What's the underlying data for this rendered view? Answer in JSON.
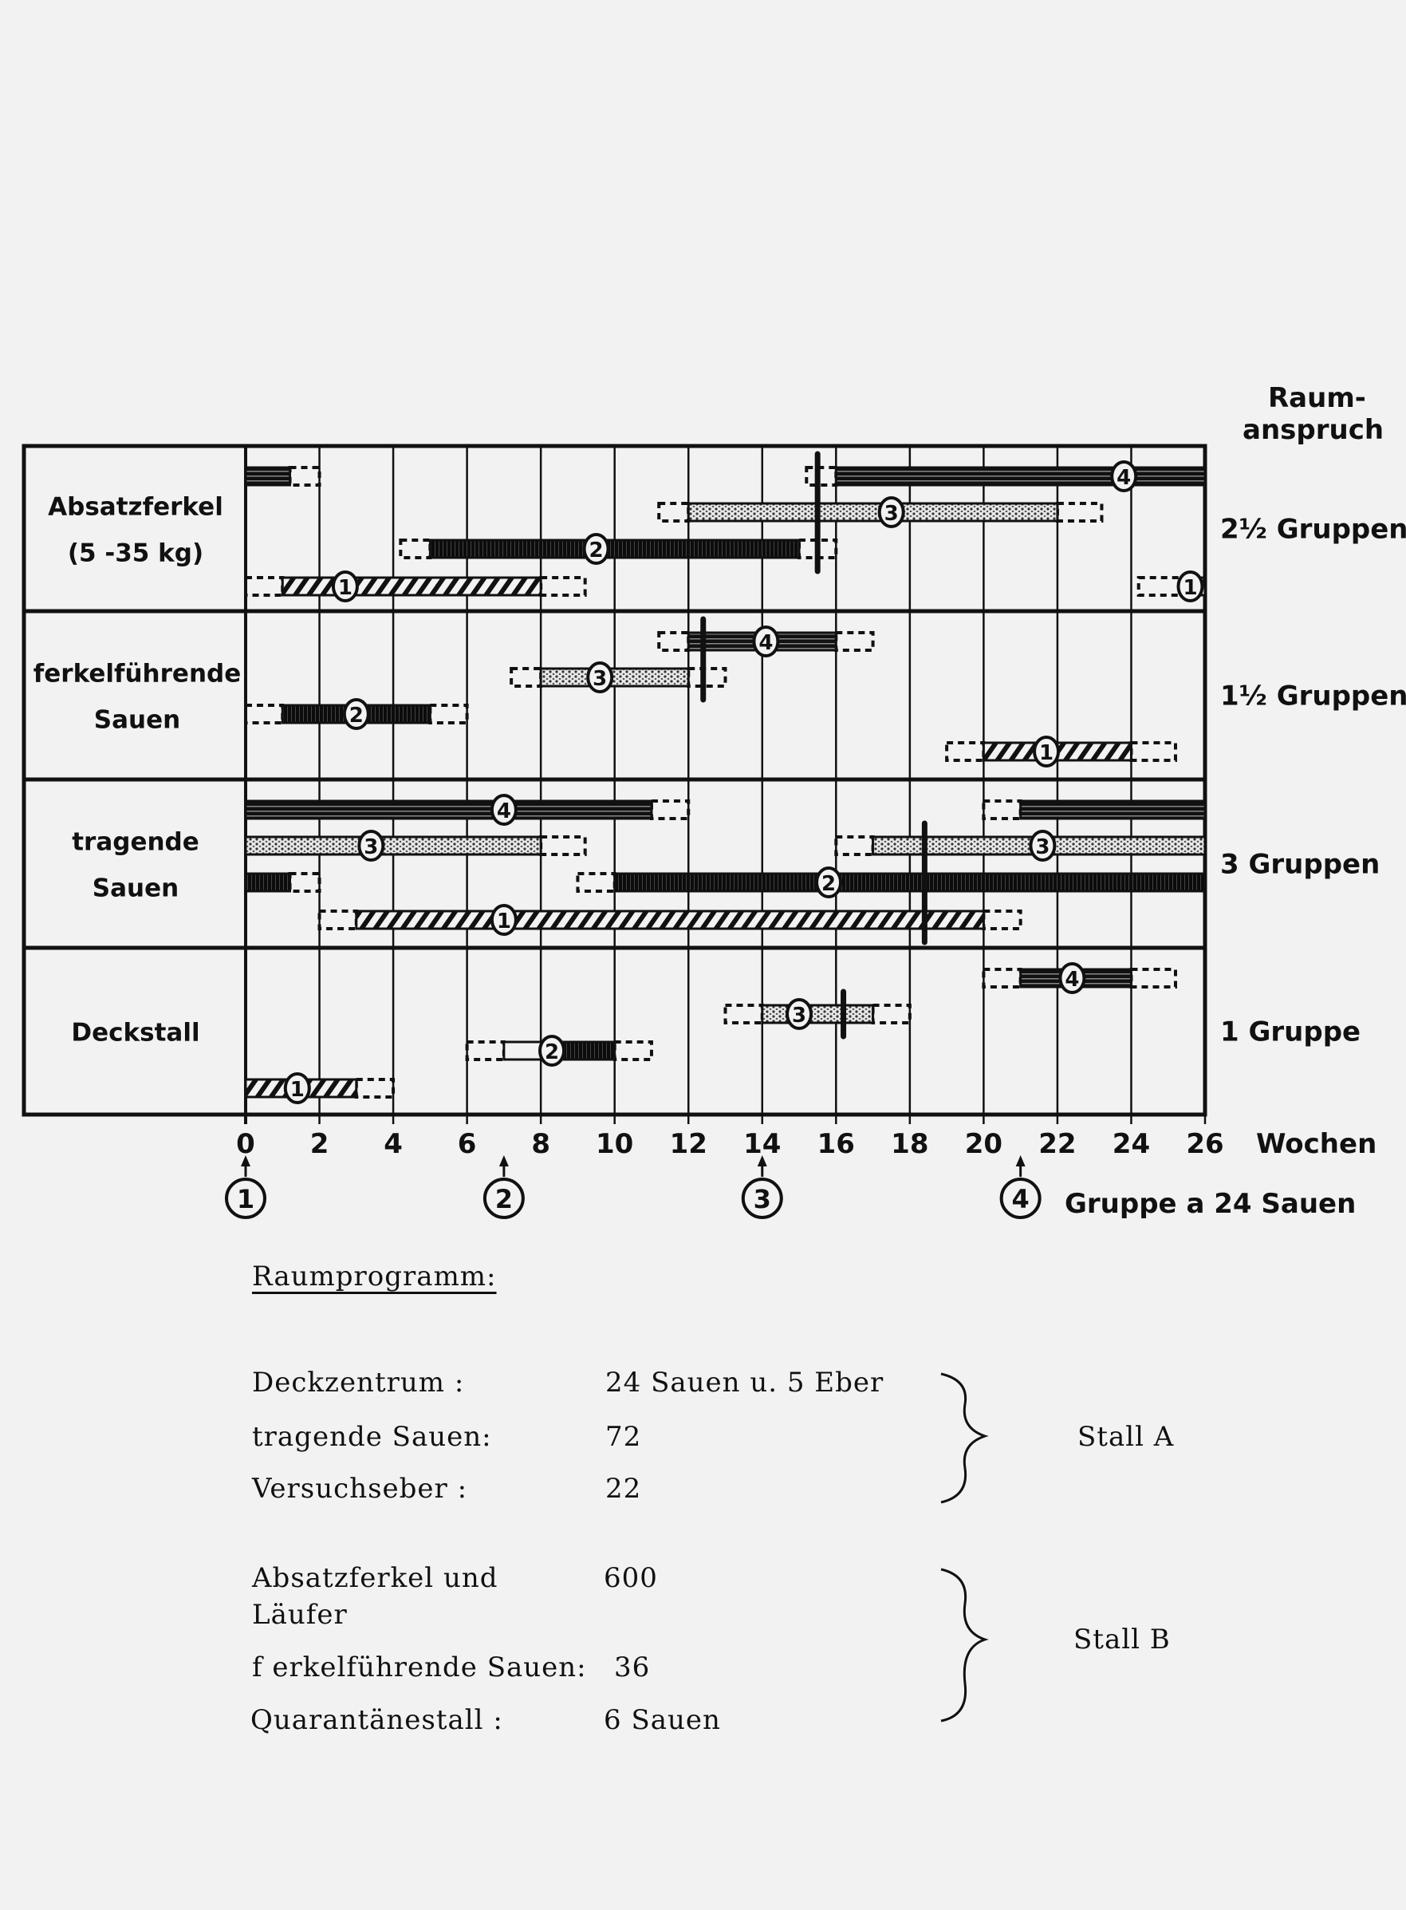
{
  "chart_data": {
    "type": "gantt",
    "x_unit_label": "Wochen",
    "xlim": [
      0,
      26
    ],
    "x_ticks": [
      0,
      2,
      4,
      6,
      8,
      10,
      12,
      14,
      16,
      18,
      20,
      22,
      24,
      26
    ],
    "grid": true,
    "corner_label": [
      "Raum-",
      "anspruch"
    ],
    "group_starts": [
      {
        "group": "1",
        "week": 0
      },
      {
        "group": "2",
        "week": 7
      },
      {
        "group": "3",
        "week": 14
      },
      {
        "group": "4",
        "week": 21
      }
    ],
    "group_note": "Gruppe a 24 Sauen",
    "patterns": {
      "1": "hatched",
      "2": "solid-dark",
      "3": "dotted",
      "4": "striped"
    },
    "rows": [
      {
        "label": [
          "Absatzferkel",
          "(5 -35 kg)"
        ],
        "space": "2½ Gruppen",
        "divider_week": 15.5,
        "divider_groups": [
          "4",
          "2"
        ],
        "bars": [
          {
            "group": "4",
            "solid": [
              [
                0,
                1.2
              ],
              [
                16,
                26
              ]
            ],
            "dashed": [
              [
                1.2,
                2
              ],
              [
                15.2,
                16
              ]
            ],
            "labels_at": [
              23.8
            ]
          },
          {
            "group": "3",
            "solid": [
              [
                12,
                22
              ]
            ],
            "dashed": [
              [
                11.2,
                12
              ],
              [
                22,
                23.2
              ]
            ],
            "labels_at": [
              17.5
            ]
          },
          {
            "group": "2",
            "solid": [
              [
                5,
                15
              ]
            ],
            "dashed": [
              [
                4.2,
                5
              ],
              [
                15,
                16
              ]
            ],
            "labels_at": [
              9.5
            ]
          },
          {
            "group": "1",
            "solid": [
              [
                1,
                8
              ],
              [
                25.4,
                26
              ]
            ],
            "dashed": [
              [
                0,
                1
              ],
              [
                8,
                9.2
              ],
              [
                24.2,
                25.4
              ]
            ],
            "labels_at": [
              2.7,
              25.6
            ]
          }
        ]
      },
      {
        "label": [
          "ferkelführende",
          "Sauen"
        ],
        "space": "1½ Gruppen",
        "divider_week": 12.4,
        "divider_groups": [
          "4",
          "3"
        ],
        "bars": [
          {
            "group": "4",
            "solid": [
              [
                12,
                16
              ]
            ],
            "dashed": [
              [
                11.2,
                12
              ],
              [
                16,
                17
              ]
            ],
            "labels_at": [
              14.1
            ]
          },
          {
            "group": "3",
            "solid": [
              [
                8,
                12
              ]
            ],
            "dashed": [
              [
                7.2,
                8
              ],
              [
                12,
                13
              ]
            ],
            "labels_at": [
              9.6
            ]
          },
          {
            "group": "2",
            "solid": [
              [
                1,
                5
              ]
            ],
            "dashed": [
              [
                0,
                1
              ],
              [
                5,
                6
              ]
            ],
            "labels_at": [
              3
            ]
          },
          {
            "group": "1",
            "solid": [
              [
                20,
                24
              ]
            ],
            "dashed": [
              [
                19,
                20
              ],
              [
                24,
                25.2
              ]
            ],
            "labels_at": [
              21.7
            ]
          }
        ]
      },
      {
        "label": [
          "tragende",
          "Sauen"
        ],
        "space": "3 Gruppen",
        "divider_week": 18.4,
        "divider_groups": [
          "3",
          "1"
        ],
        "bars": [
          {
            "group": "4",
            "solid": [
              [
                0,
                11
              ],
              [
                21,
                26
              ]
            ],
            "dashed": [
              [
                11,
                12
              ],
              [
                20,
                21
              ]
            ],
            "labels_at": [
              7
            ]
          },
          {
            "group": "3",
            "solid": [
              [
                0,
                8
              ],
              [
                17,
                26
              ]
            ],
            "dashed": [
              [
                8,
                9.2
              ],
              [
                16,
                17
              ]
            ],
            "labels_at": [
              3.4,
              21.6
            ]
          },
          {
            "group": "2",
            "solid": [
              [
                0,
                1.2
              ],
              [
                10,
                26
              ]
            ],
            "dashed": [
              [
                1.2,
                2
              ],
              [
                9,
                10
              ]
            ],
            "labels_at": [
              15.8
            ]
          },
          {
            "group": "1",
            "solid": [
              [
                3,
                20
              ]
            ],
            "dashed": [
              [
                2,
                3
              ],
              [
                20,
                21
              ]
            ],
            "labels_at": [
              7
            ]
          }
        ]
      },
      {
        "label": [
          "Deckstall"
        ],
        "space": "1 Gruppe",
        "divider_week": 16.2,
        "divider_groups": [
          "3",
          "3"
        ],
        "bars": [
          {
            "group": "4",
            "solid": [
              [
                21,
                24
              ]
            ],
            "dashed": [
              [
                20,
                21
              ],
              [
                24,
                25.2
              ]
            ],
            "labels_at": [
              22.4
            ]
          },
          {
            "group": "3",
            "solid": [
              [
                14,
                17
              ]
            ],
            "dashed": [
              [
                13,
                14
              ],
              [
                17,
                18
              ]
            ],
            "labels_at": [
              15
            ]
          },
          {
            "group": "2",
            "solid": [
              [
                8.2,
                10
              ]
            ],
            "open": [
              [
                7,
                8.2
              ]
            ],
            "dashed": [
              [
                6,
                7
              ],
              [
                10,
                11
              ]
            ],
            "labels_at": [
              8.3
            ]
          },
          {
            "group": "1",
            "solid": [
              [
                0,
                3
              ]
            ],
            "dashed": [
              [
                3,
                4
              ]
            ],
            "labels_at": [
              1.4
            ]
          }
        ]
      }
    ]
  },
  "raumprogramm": {
    "title": "Raumprogramm:",
    "stall_a": {
      "label": "Stall  A",
      "items": [
        {
          "name": "Deckzentrum :",
          "value": "24 Sauen u.  5 Eber"
        },
        {
          "name": "tragende Sauen:",
          "value": "72"
        },
        {
          "name": "Versuchseber :",
          "value": "22"
        }
      ]
    },
    "stall_b": {
      "label": "Stall  B",
      "items": [
        {
          "name": "Absatzferkel  und",
          "name2": "Läufer",
          "value": "600"
        },
        {
          "name": "f erkelführende Sauen:",
          "value": "36"
        },
        {
          "name": "Quarantänestall :",
          "value": "6  Sauen"
        }
      ]
    }
  }
}
